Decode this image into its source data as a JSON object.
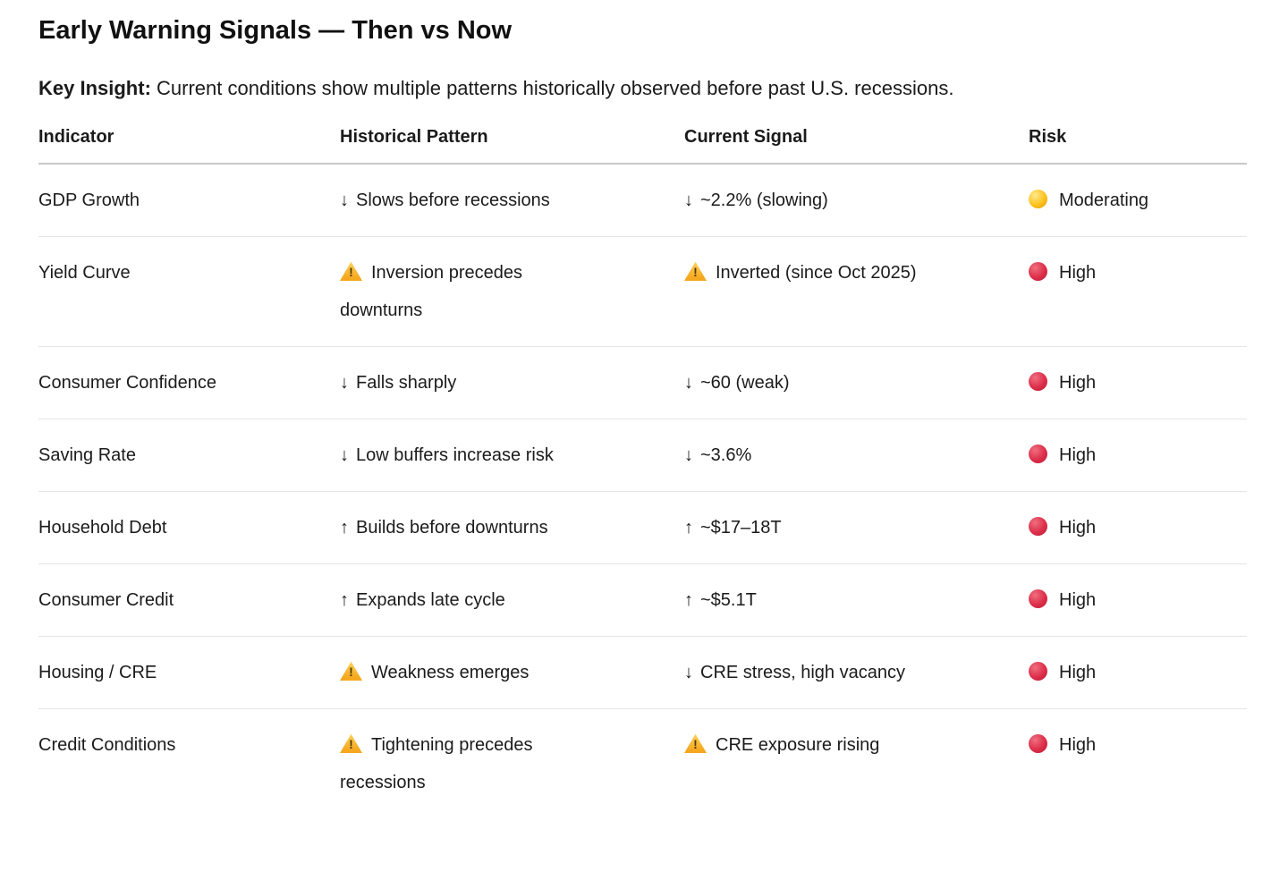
{
  "page": {
    "title": "Early Warning Signals — Then vs Now",
    "insight_label": "Key Insight:",
    "insight_text": "Current conditions show multiple patterns historically observed before past U.S. recessions."
  },
  "table": {
    "columns": [
      "Indicator",
      "Historical Pattern",
      "Current Signal",
      "Risk"
    ],
    "rows": [
      {
        "indicator": "GDP Growth",
        "pattern": {
          "icon": "down-arrow",
          "text": "Slows before recessions"
        },
        "signal": {
          "icon": "down-arrow",
          "text": "~2.2% (slowing)"
        },
        "risk": {
          "icon": "yellow-circle",
          "label": "Moderating"
        }
      },
      {
        "indicator": "Yield Curve",
        "pattern": {
          "icon": "warning",
          "text": "Inversion precedes downturns"
        },
        "signal": {
          "icon": "warning",
          "text": "Inverted (since Oct 2025)"
        },
        "risk": {
          "icon": "red-circle",
          "label": "High"
        }
      },
      {
        "indicator": "Consumer Confidence",
        "pattern": {
          "icon": "down-arrow",
          "text": "Falls sharply"
        },
        "signal": {
          "icon": "down-arrow",
          "text": "~60 (weak)"
        },
        "risk": {
          "icon": "red-circle",
          "label": "High"
        }
      },
      {
        "indicator": "Saving Rate",
        "pattern": {
          "icon": "down-arrow",
          "text": "Low buffers increase risk"
        },
        "signal": {
          "icon": "down-arrow",
          "text": "~3.6%"
        },
        "risk": {
          "icon": "red-circle",
          "label": "High"
        }
      },
      {
        "indicator": "Household Debt",
        "pattern": {
          "icon": "up-arrow",
          "text": "Builds before downturns"
        },
        "signal": {
          "icon": "up-arrow",
          "text": "~$17–18T"
        },
        "risk": {
          "icon": "red-circle",
          "label": "High"
        }
      },
      {
        "indicator": "Consumer Credit",
        "pattern": {
          "icon": "up-arrow",
          "text": "Expands late cycle"
        },
        "signal": {
          "icon": "up-arrow",
          "text": "~$5.1T"
        },
        "risk": {
          "icon": "red-circle",
          "label": "High"
        }
      },
      {
        "indicator": "Housing / CRE",
        "pattern": {
          "icon": "warning",
          "text": "Weakness emerges"
        },
        "signal": {
          "icon": "down-arrow",
          "text": "CRE stress, high vacancy"
        },
        "risk": {
          "icon": "red-circle",
          "label": "High"
        }
      },
      {
        "indicator": "Credit Conditions",
        "pattern": {
          "icon": "warning",
          "text": "Tightening precedes recessions"
        },
        "signal": {
          "icon": "warning",
          "text": "CRE exposure rising"
        },
        "risk": {
          "icon": "red-circle",
          "label": "High"
        }
      }
    ]
  },
  "colors": {
    "risk_high": "#dd2e4a",
    "risk_moderate": "#fcc21b",
    "warning_icon": "#f5a81f",
    "text": "#1b1b1b",
    "header_rule": "#c9c9c9",
    "row_rule": "#e5e5e5"
  }
}
